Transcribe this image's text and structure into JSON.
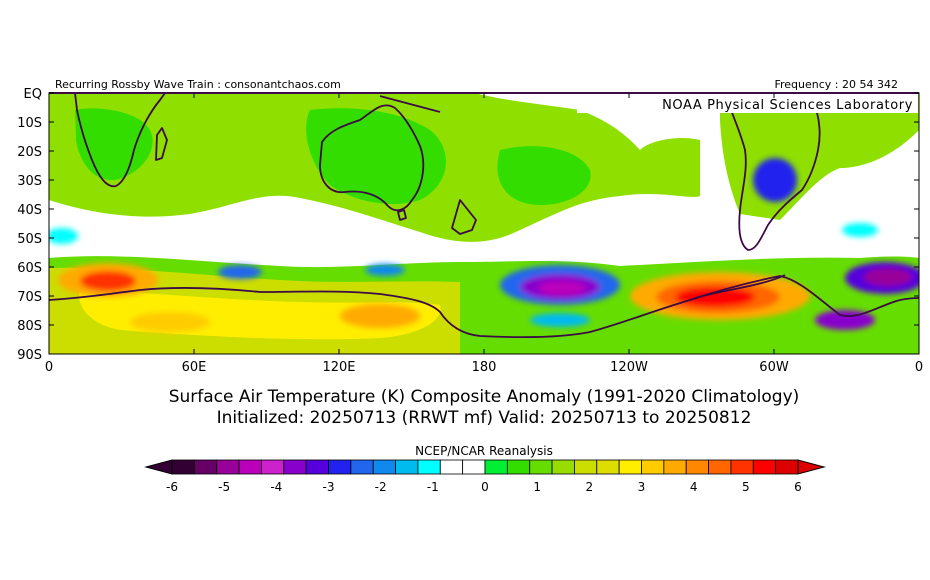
{
  "header": {
    "left_text": "Recurring Rossby Wave Train : consonantchaos.com",
    "right_text": "Frequency : 20 54 342",
    "lab": "NOAA Physical Sciences Laboratory"
  },
  "map": {
    "region": "Southern Hemisphere, equator to 90S, 0 to 360 longitude",
    "lat_labels": [
      "EQ",
      "10S",
      "20S",
      "30S",
      "40S",
      "50S",
      "60S",
      "70S",
      "80S",
      "90S"
    ],
    "lon_labels": [
      "0",
      "60E",
      "120E",
      "180",
      "120W",
      "60W",
      "0"
    ],
    "coastline_color": "#3c0a46"
  },
  "title": {
    "line1": "Surface Air Temperature (K) Composite Anomaly (1991-2020 Climatology)",
    "line2": "Initialized: 20250713 (RRWT mf) Valid: 20250713 to 20250812"
  },
  "colorbar": {
    "source": "NCEP/NCAR Reanalysis",
    "tick_labels": [
      "-6",
      "-5",
      "-4",
      "-3",
      "-2",
      "-1",
      "0",
      "1",
      "2",
      "3",
      "4",
      "5",
      "6"
    ],
    "colors": [
      "#330033",
      "#660066",
      "#990099",
      "#bb00bb",
      "#cc22cc",
      "#8800cc",
      "#5500dd",
      "#2222ee",
      "#2266ee",
      "#1188ee",
      "#00bbee",
      "#00ffff",
      "#ffffff",
      "#ffffff",
      "#00ee33",
      "#33dd00",
      "#66dd00",
      "#99dd00",
      "#ccdd00",
      "#dddd00",
      "#ffee00",
      "#ffcc00",
      "#ffaa00",
      "#ff8800",
      "#ff6600",
      "#ff3300",
      "#ff0000",
      "#dd0000"
    ]
  }
}
